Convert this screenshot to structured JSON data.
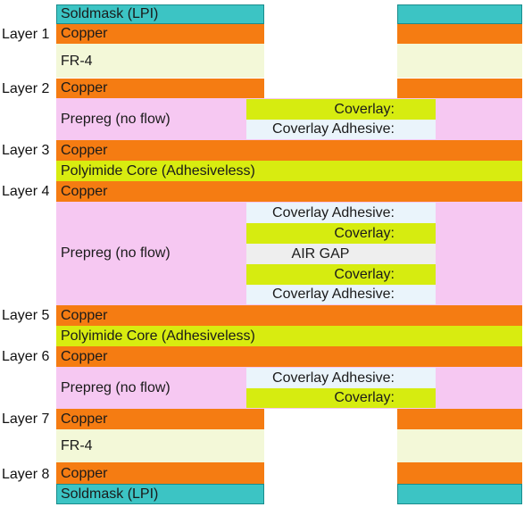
{
  "layer_labels": [
    "Layer 1",
    "Layer 2",
    "Layer 3",
    "Layer 4",
    "Layer 5",
    "Layer 6",
    "Layer 7",
    "Layer 8"
  ],
  "materials": {
    "soldmask": "Soldmask (LPI)",
    "copper": "Copper",
    "fr4": "FR-4",
    "prepreg": "Prepreg (no flow)",
    "polyimide": "Polyimide Core (Adhesiveless)",
    "coverlay": "Coverlay:",
    "coverlay_adhesive": "Coverlay Adhesive:",
    "air_gap": "AIR GAP"
  },
  "colors": {
    "soldmask": "#3cc4c4",
    "copper": "#f57c12",
    "fr4": "#f3f8d8",
    "prepreg": "#f6c8f2",
    "polyimide": "#d8ec10",
    "coverlay": "#d6ec10",
    "coverlay_adhesive": "#eaf4fb",
    "air_gap": "#eeeeee"
  }
}
